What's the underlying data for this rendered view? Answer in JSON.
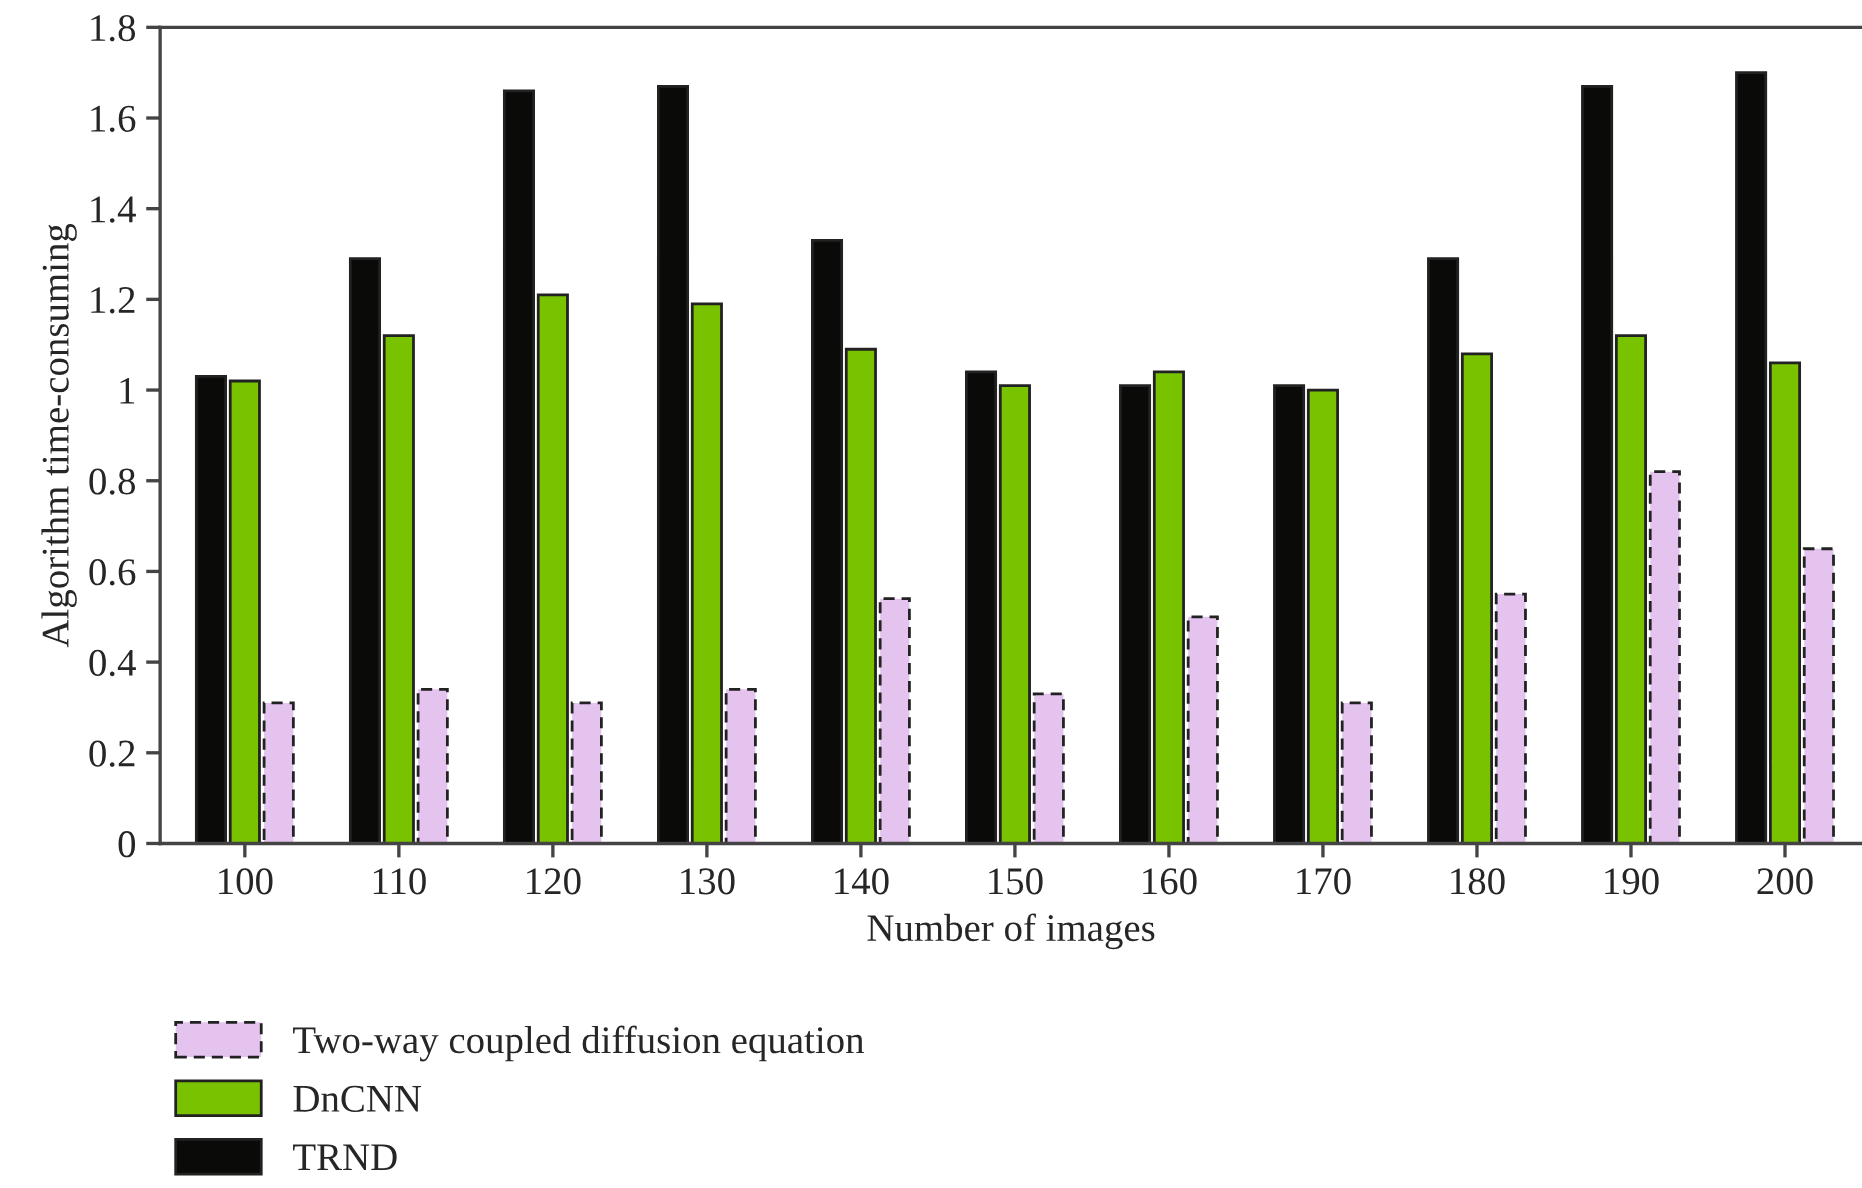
{
  "chart_data": {
    "type": "bar",
    "xlabel": "Number of images",
    "ylabel": "Algorithm time-consuming",
    "categories": [
      "100",
      "110",
      "120",
      "130",
      "140",
      "150",
      "160",
      "170",
      "180",
      "190",
      "200"
    ],
    "series": [
      {
        "name": "TRND",
        "color": "#0a0a08",
        "values": [
          1.03,
          1.29,
          1.66,
          1.67,
          1.33,
          1.04,
          1.01,
          1.01,
          1.29,
          1.67,
          1.7
        ]
      },
      {
        "name": "DnCNN",
        "color": "#78c200",
        "values": [
          1.02,
          1.12,
          1.21,
          1.19,
          1.09,
          1.01,
          1.04,
          1.0,
          1.08,
          1.12,
          1.06
        ]
      },
      {
        "name": "Two-way coupled diffusion equation",
        "color": "#e4c3ee",
        "line_style": "dashed",
        "values": [
          0.31,
          0.34,
          0.31,
          0.34,
          0.54,
          0.33,
          0.5,
          0.31,
          0.55,
          0.82,
          0.65
        ]
      }
    ],
    "ylim": [
      0,
      1.8
    ],
    "yticks": [
      0,
      0.2,
      0.4,
      0.6,
      0.8,
      1,
      1.2,
      1.4,
      1.6,
      1.8
    ],
    "grid": false,
    "legend": "bottom"
  }
}
